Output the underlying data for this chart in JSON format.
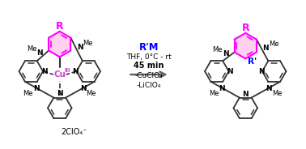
{
  "background_color": "#ffffff",
  "pink_color": "#FF00FF",
  "blue_color": "#0000FF",
  "black_color": "#000000",
  "copper_color": "#CC44CC",
  "gray_color": "#333333",
  "reagent_text": "R'M",
  "condition1": "THF, 0°C - rt",
  "condition2": "45 min",
  "byproduct1": "-CuClO₄",
  "byproduct2": "-LiClO₄",
  "anion": "2ClO₄⁻"
}
